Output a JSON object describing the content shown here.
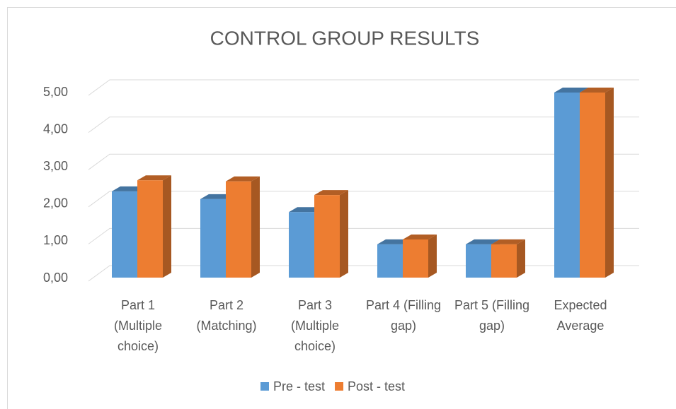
{
  "chart_data": {
    "type": "bar3d",
    "title": "CONTROL GROUP RESULTS",
    "categories": [
      "Part 1 (Multiple choice)",
      "Part 2 (Matching)",
      "Part 3 (Multiple choice)",
      "Part 4 (Filling gap)",
      "Part 5 (Filling gap)",
      "Expected Average"
    ],
    "series": [
      {
        "name": "Pre - test",
        "color": "#5b9bd5",
        "values": [
          2.33,
          2.12,
          1.77,
          0.9,
          0.9,
          5
        ]
      },
      {
        "name": "Post - test",
        "color": "#ed7d31",
        "values": [
          2.63,
          2.6,
          2.23,
          1.03,
          0.9,
          5
        ]
      }
    ],
    "ylim": [
      0,
      5.3
    ],
    "yticks": [
      {
        "value": 0,
        "label": "0,00"
      },
      {
        "value": 1,
        "label": "1,00"
      },
      {
        "value": 2,
        "label": "2,00"
      },
      {
        "value": 3,
        "label": "3,00"
      },
      {
        "value": 4,
        "label": "4,00"
      },
      {
        "value": 5,
        "label": "5,00"
      }
    ],
    "grid": true,
    "legend": "bottom"
  }
}
